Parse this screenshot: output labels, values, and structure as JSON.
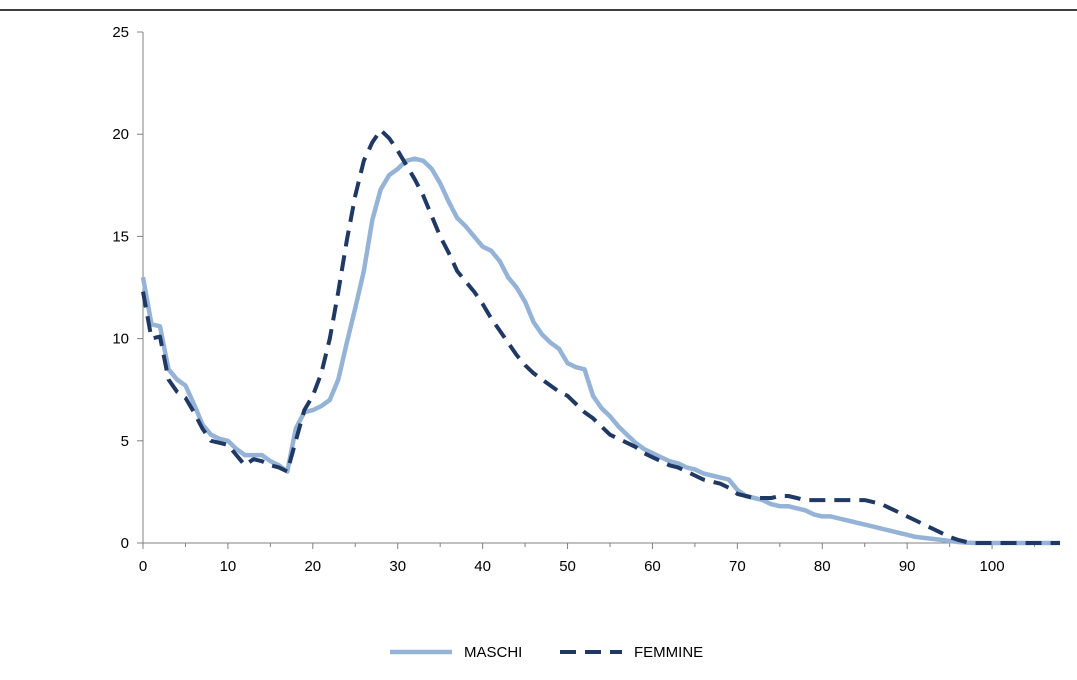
{
  "chart_data": {
    "type": "line",
    "xlim": [
      0,
      108
    ],
    "ylim": [
      0,
      25
    ],
    "xticks": [
      0,
      10,
      20,
      30,
      40,
      50,
      60,
      70,
      80,
      90,
      100
    ],
    "yticks": [
      0,
      5,
      10,
      15,
      20,
      25
    ],
    "grid": false,
    "legend_position": "bottom",
    "series": [
      {
        "name": "MASCHI",
        "color": "#95B3D7",
        "style": "solid",
        "points": [
          [
            0,
            13.0
          ],
          [
            1,
            10.7
          ],
          [
            2,
            10.6
          ],
          [
            3,
            8.5
          ],
          [
            4,
            8.0
          ],
          [
            5,
            7.7
          ],
          [
            6,
            6.8
          ],
          [
            7,
            5.8
          ],
          [
            8,
            5.3
          ],
          [
            9,
            5.1
          ],
          [
            10,
            5.0
          ],
          [
            11,
            4.6
          ],
          [
            12,
            4.3
          ],
          [
            13,
            4.3
          ],
          [
            14,
            4.3
          ],
          [
            15,
            4.0
          ],
          [
            16,
            3.8
          ],
          [
            17,
            3.5
          ],
          [
            18,
            5.6
          ],
          [
            19,
            6.4
          ],
          [
            20,
            6.5
          ],
          [
            21,
            6.7
          ],
          [
            22,
            7.0
          ],
          [
            23,
            8.0
          ],
          [
            24,
            9.8
          ],
          [
            25,
            11.5
          ],
          [
            26,
            13.3
          ],
          [
            27,
            15.8
          ],
          [
            28,
            17.3
          ],
          [
            29,
            18.0
          ],
          [
            30,
            18.3
          ],
          [
            31,
            18.7
          ],
          [
            32,
            18.8
          ],
          [
            33,
            18.7
          ],
          [
            34,
            18.3
          ],
          [
            35,
            17.6
          ],
          [
            36,
            16.7
          ],
          [
            37,
            15.9
          ],
          [
            38,
            15.5
          ],
          [
            39,
            15.0
          ],
          [
            40,
            14.5
          ],
          [
            41,
            14.3
          ],
          [
            42,
            13.8
          ],
          [
            43,
            13.0
          ],
          [
            44,
            12.5
          ],
          [
            45,
            11.8
          ],
          [
            46,
            10.8
          ],
          [
            47,
            10.2
          ],
          [
            48,
            9.8
          ],
          [
            49,
            9.5
          ],
          [
            50,
            8.8
          ],
          [
            51,
            8.6
          ],
          [
            52,
            8.5
          ],
          [
            53,
            7.2
          ],
          [
            54,
            6.6
          ],
          [
            55,
            6.2
          ],
          [
            56,
            5.7
          ],
          [
            57,
            5.3
          ],
          [
            58,
            4.9
          ],
          [
            59,
            4.6
          ],
          [
            60,
            4.4
          ],
          [
            61,
            4.2
          ],
          [
            62,
            4.0
          ],
          [
            63,
            3.9
          ],
          [
            64,
            3.7
          ],
          [
            65,
            3.6
          ],
          [
            66,
            3.4
          ],
          [
            67,
            3.3
          ],
          [
            68,
            3.2
          ],
          [
            69,
            3.1
          ],
          [
            70,
            2.6
          ],
          [
            71,
            2.3
          ],
          [
            72,
            2.2
          ],
          [
            73,
            2.1
          ],
          [
            74,
            1.9
          ],
          [
            75,
            1.8
          ],
          [
            76,
            1.8
          ],
          [
            77,
            1.7
          ],
          [
            78,
            1.6
          ],
          [
            79,
            1.4
          ],
          [
            80,
            1.3
          ],
          [
            81,
            1.3
          ],
          [
            82,
            1.2
          ],
          [
            83,
            1.1
          ],
          [
            84,
            1.0
          ],
          [
            85,
            0.9
          ],
          [
            86,
            0.8
          ],
          [
            87,
            0.7
          ],
          [
            88,
            0.6
          ],
          [
            89,
            0.5
          ],
          [
            90,
            0.4
          ],
          [
            91,
            0.3
          ],
          [
            92,
            0.25
          ],
          [
            93,
            0.2
          ],
          [
            94,
            0.15
          ],
          [
            95,
            0.1
          ],
          [
            96,
            0.05
          ],
          [
            97,
            0.02
          ],
          [
            98,
            0.0
          ],
          [
            108,
            0.0
          ]
        ]
      },
      {
        "name": "FEMMINE",
        "color": "#1F3864",
        "style": "dashed",
        "points": [
          [
            0,
            12.3
          ],
          [
            1,
            10.0
          ],
          [
            2,
            10.1
          ],
          [
            3,
            8.0
          ],
          [
            4,
            7.4
          ],
          [
            5,
            7.1
          ],
          [
            6,
            6.4
          ],
          [
            7,
            5.6
          ],
          [
            8,
            5.0
          ],
          [
            9,
            4.9
          ],
          [
            10,
            4.8
          ],
          [
            11,
            4.3
          ],
          [
            12,
            3.8
          ],
          [
            13,
            4.1
          ],
          [
            14,
            4.0
          ],
          [
            15,
            3.8
          ],
          [
            16,
            3.7
          ],
          [
            17,
            3.5
          ],
          [
            18,
            5.0
          ],
          [
            19,
            6.5
          ],
          [
            20,
            7.2
          ],
          [
            21,
            8.3
          ],
          [
            22,
            10.0
          ],
          [
            23,
            12.3
          ],
          [
            24,
            14.8
          ],
          [
            25,
            17.0
          ],
          [
            26,
            18.7
          ],
          [
            27,
            19.6
          ],
          [
            28,
            20.2
          ],
          [
            29,
            19.8
          ],
          [
            30,
            19.2
          ],
          [
            31,
            18.5
          ],
          [
            32,
            17.8
          ],
          [
            33,
            17.0
          ],
          [
            34,
            16.0
          ],
          [
            35,
            15.0
          ],
          [
            36,
            14.2
          ],
          [
            37,
            13.3
          ],
          [
            38,
            12.8
          ],
          [
            39,
            12.3
          ],
          [
            40,
            11.7
          ],
          [
            41,
            11.0
          ],
          [
            42,
            10.4
          ],
          [
            43,
            9.8
          ],
          [
            44,
            9.2
          ],
          [
            45,
            8.7
          ],
          [
            46,
            8.3
          ],
          [
            47,
            8.0
          ],
          [
            48,
            7.7
          ],
          [
            49,
            7.4
          ],
          [
            50,
            7.2
          ],
          [
            51,
            6.8
          ],
          [
            52,
            6.4
          ],
          [
            53,
            6.1
          ],
          [
            54,
            5.7
          ],
          [
            55,
            5.3
          ],
          [
            56,
            5.1
          ],
          [
            57,
            4.9
          ],
          [
            58,
            4.7
          ],
          [
            59,
            4.4
          ],
          [
            60,
            4.2
          ],
          [
            61,
            4.0
          ],
          [
            62,
            3.8
          ],
          [
            63,
            3.7
          ],
          [
            64,
            3.5
          ],
          [
            65,
            3.3
          ],
          [
            66,
            3.1
          ],
          [
            67,
            3.0
          ],
          [
            68,
            2.9
          ],
          [
            69,
            2.7
          ],
          [
            70,
            2.4
          ],
          [
            71,
            2.3
          ],
          [
            72,
            2.2
          ],
          [
            73,
            2.2
          ],
          [
            74,
            2.2
          ],
          [
            75,
            2.3
          ],
          [
            76,
            2.3
          ],
          [
            77,
            2.2
          ],
          [
            78,
            2.1
          ],
          [
            79,
            2.1
          ],
          [
            80,
            2.1
          ],
          [
            81,
            2.1
          ],
          [
            82,
            2.1
          ],
          [
            83,
            2.1
          ],
          [
            84,
            2.1
          ],
          [
            85,
            2.1
          ],
          [
            86,
            2.0
          ],
          [
            87,
            1.9
          ],
          [
            88,
            1.7
          ],
          [
            89,
            1.5
          ],
          [
            90,
            1.3
          ],
          [
            91,
            1.1
          ],
          [
            92,
            0.9
          ],
          [
            93,
            0.7
          ],
          [
            94,
            0.5
          ],
          [
            95,
            0.3
          ],
          [
            96,
            0.15
          ],
          [
            97,
            0.05
          ],
          [
            98,
            0.0
          ],
          [
            108,
            0.0
          ]
        ]
      }
    ]
  }
}
